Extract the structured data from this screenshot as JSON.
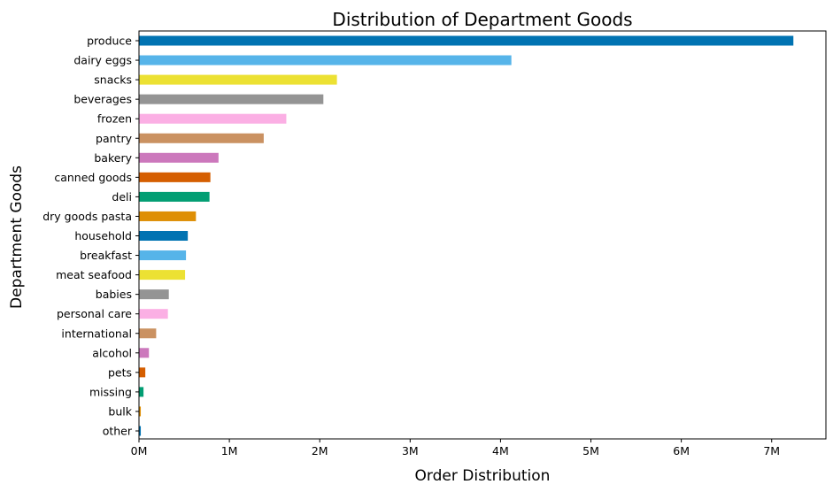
{
  "chart_data": {
    "type": "bar",
    "orientation": "horizontal",
    "title": "Distribution of Department Goods",
    "xlabel": "Order Distribution",
    "ylabel": "Department Goods",
    "xlim": [
      0,
      7600000
    ],
    "x_ticks": [
      {
        "value": 0,
        "label": "0M"
      },
      {
        "value": 1000000,
        "label": "1M"
      },
      {
        "value": 2000000,
        "label": "2M"
      },
      {
        "value": 3000000,
        "label": "3M"
      },
      {
        "value": 4000000,
        "label": "4M"
      },
      {
        "value": 5000000,
        "label": "5M"
      },
      {
        "value": 6000000,
        "label": "6M"
      },
      {
        "value": 7000000,
        "label": "7M"
      }
    ],
    "grid": false,
    "legend": "none",
    "categories": [
      "produce",
      "dairy eggs",
      "snacks",
      "beverages",
      "frozen",
      "pantry",
      "bakery",
      "canned goods",
      "deli",
      "dry goods pasta",
      "household",
      "breakfast",
      "meat seafood",
      "babies",
      "personal care",
      "international",
      "alcohol",
      "pets",
      "missing",
      "bulk",
      "other"
    ],
    "values": [
      7240000,
      4120000,
      2190000,
      2040000,
      1630000,
      1380000,
      880000,
      790000,
      780000,
      630000,
      540000,
      520000,
      510000,
      330000,
      320000,
      190000,
      110000,
      70000,
      50000,
      20000,
      20000
    ],
    "colors": [
      "#0173b2",
      "#56b4e9",
      "#ece133",
      "#949494",
      "#fbafe4",
      "#ca9161",
      "#cc78bc",
      "#d55e00",
      "#029e73",
      "#de8f05",
      "#0173b2",
      "#56b4e9",
      "#ece133",
      "#949494",
      "#fbafe4",
      "#ca9161",
      "#cc78bc",
      "#d55e00",
      "#029e73",
      "#de8f05",
      "#0173b2"
    ]
  }
}
